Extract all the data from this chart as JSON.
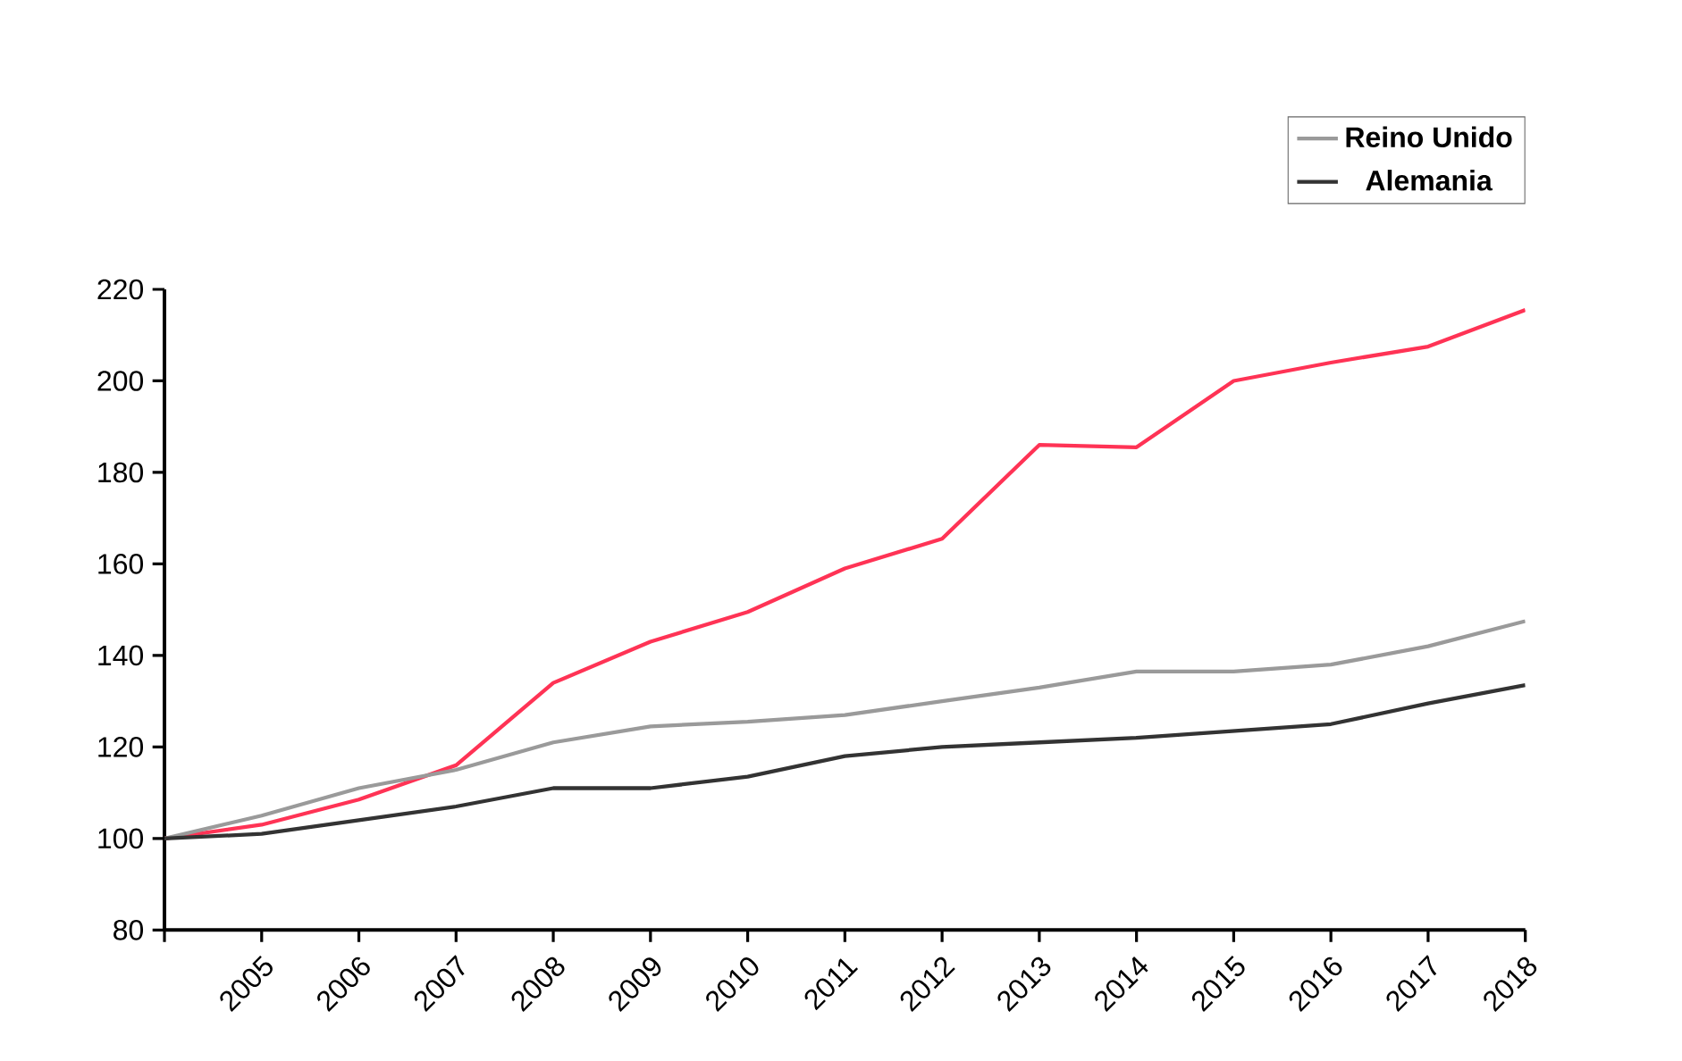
{
  "chart_data": {
    "type": "line",
    "x": [
      2004,
      2005,
      2006,
      2007,
      2008,
      2009,
      2010,
      2011,
      2012,
      2013,
      2014,
      2015,
      2016,
      2017,
      2018
    ],
    "xlim": [
      2004,
      2018
    ],
    "xticks": [
      {
        "value": 2004,
        "label": null
      },
      2005,
      2006,
      2007,
      2008,
      2009,
      2010,
      2011,
      2012,
      2013,
      2014,
      2015,
      2016,
      2017,
      2018
    ],
    "ylim": [
      80,
      220
    ],
    "yticks": [
      80,
      100,
      120,
      140,
      160,
      180,
      200,
      220
    ],
    "legend": "top right",
    "grid": false,
    "marker": "none",
    "line_style": "solid",
    "series": [
      {
        "color": "#ff3355",
        "values": [
          100,
          103,
          108.5,
          116,
          134,
          143,
          149.5,
          159,
          165.5,
          186,
          185.5,
          200,
          204,
          207.5,
          215.5
        ]
      },
      {
        "name": "Reino Unido",
        "color": "#9a9a9a",
        "values": [
          100,
          105,
          111,
          115,
          121,
          124.5,
          125.5,
          127,
          130,
          133,
          136.5,
          136.5,
          138,
          142,
          147.5
        ]
      },
      {
        "name": "Alemania",
        "color": "#333333",
        "values": [
          100,
          101,
          104,
          107,
          111,
          111,
          113.5,
          118,
          120,
          121,
          122,
          123.5,
          125,
          129.5,
          133.5
        ]
      }
    ]
  }
}
